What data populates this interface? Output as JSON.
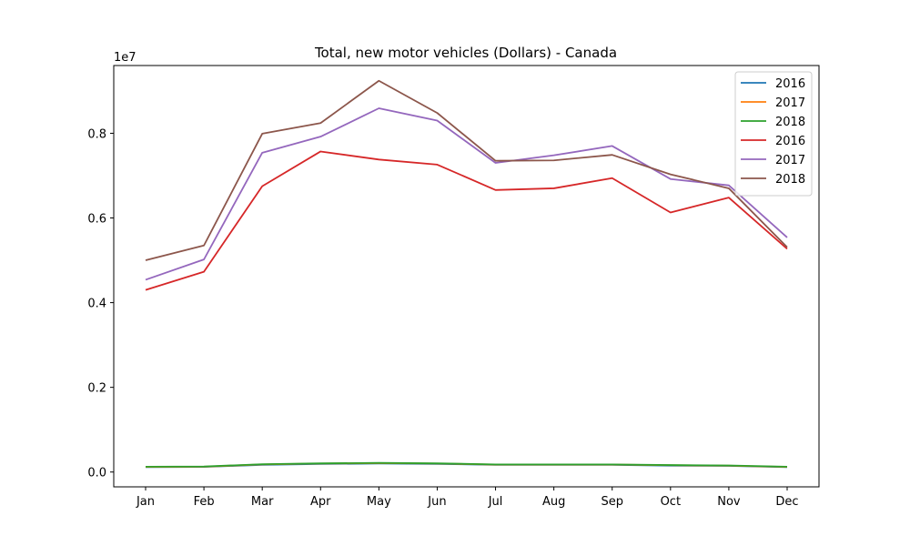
{
  "chart_data": {
    "type": "line",
    "title": "Total, new motor vehicles (Dollars) - Canada",
    "xlabel": "",
    "ylabel": "",
    "offset_label": "1e7",
    "scale": 10000000,
    "categories": [
      "Jan",
      "Feb",
      "Mar",
      "Apr",
      "May",
      "Jun",
      "Jul",
      "Aug",
      "Sep",
      "Oct",
      "Nov",
      "Dec"
    ],
    "yticks": [
      0.0,
      0.2,
      0.4,
      0.6,
      0.8
    ],
    "ytick_labels": [
      "0.0",
      "0.2",
      "0.4",
      "0.6",
      "0.8"
    ],
    "ylim": [
      -350000,
      9600000
    ],
    "grid": false,
    "legend_position": "top-right",
    "series": [
      {
        "name": "2016",
        "color": "#1f77b4",
        "values": [
          115000,
          120000,
          170000,
          190000,
          200000,
          190000,
          170000,
          170000,
          170000,
          150000,
          145000,
          115000
        ]
      },
      {
        "name": "2017",
        "color": "#ff7f0e",
        "values": [
          120000,
          125000,
          180000,
          200000,
          210000,
          200000,
          175000,
          175000,
          175000,
          160000,
          150000,
          120000
        ]
      },
      {
        "name": "2018",
        "color": "#2ca02c",
        "values": [
          125000,
          130000,
          185000,
          205000,
          215000,
          205000,
          180000,
          180000,
          180000,
          165000,
          155000,
          125000
        ]
      },
      {
        "name": "2016",
        "color": "#d62728",
        "values": [
          4300000,
          4730000,
          6750000,
          7570000,
          7380000,
          7260000,
          6660000,
          6700000,
          6940000,
          6130000,
          6480000,
          5270000
        ]
      },
      {
        "name": "2017",
        "color": "#9467bd",
        "values": [
          4540000,
          5020000,
          7540000,
          7920000,
          8590000,
          8300000,
          7300000,
          7480000,
          7700000,
          6920000,
          6770000,
          5540000
        ]
      },
      {
        "name": "2018",
        "color": "#8c564b",
        "values": [
          5000000,
          5350000,
          7990000,
          8240000,
          9240000,
          8480000,
          7350000,
          7360000,
          7490000,
          7030000,
          6700000,
          5310000
        ]
      }
    ]
  }
}
